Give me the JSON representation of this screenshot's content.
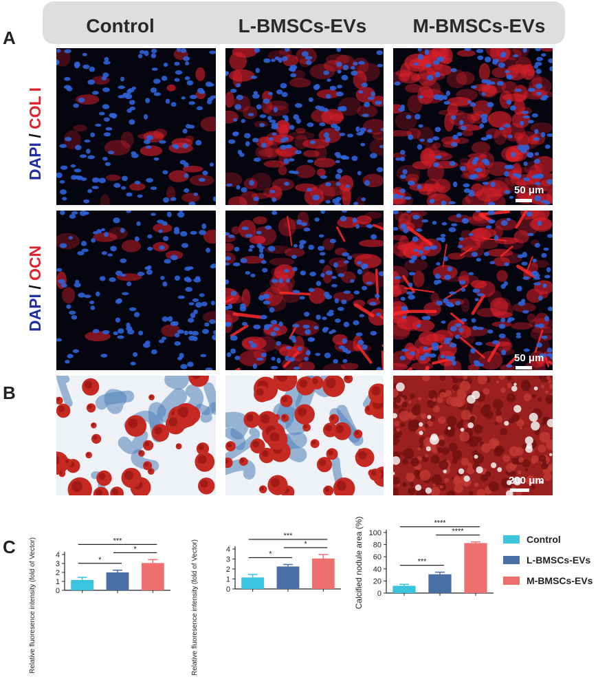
{
  "panel_labels": {
    "a": "A",
    "b": "B",
    "c": "C"
  },
  "columns": [
    "Control",
    "L-BMSCs-EVs",
    "M-BMSCs-EVs"
  ],
  "rows": [
    {
      "stain_a": "DAPI",
      "separator": " / ",
      "stain_b": "COL I"
    },
    {
      "stain_a": "DAPI",
      "separator": " / ",
      "stain_b": "OCN"
    }
  ],
  "scale_bars": {
    "fluorescence": "50 μm",
    "alizarin": "200 μm"
  },
  "colors": {
    "control": "#3bc4dd",
    "l_bmscs": "#4a6fa5",
    "m_bmscs": "#ef6f6f",
    "dapi_blue": "#1f2ea0",
    "stain_red": "#e0202a"
  },
  "legend": [
    {
      "label": "Control",
      "color": "#3bc4dd"
    },
    {
      "label": "L-BMSCs-EVs",
      "color": "#4a6fa5"
    },
    {
      "label": "M-BMSCs-EVs",
      "color": "#ef6f6f"
    }
  ],
  "chart_data": [
    {
      "type": "bar",
      "ylabel": "Relative fluoresence intensity (fold of Vector)",
      "ylim": [
        0,
        4
      ],
      "yticks": [
        0,
        1,
        2,
        3,
        4
      ],
      "categories": [
        "Control",
        "L-BMSCs-EVs",
        "M-BMSCs-EVs"
      ],
      "values": [
        1.15,
        2.0,
        3.05
      ],
      "errors": [
        0.3,
        0.25,
        0.38
      ],
      "significance": [
        {
          "from": 0,
          "to": 1,
          "label": "*"
        },
        {
          "from": 1,
          "to": 2,
          "label": "*"
        },
        {
          "from": 0,
          "to": 2,
          "label": "***"
        }
      ]
    },
    {
      "type": "bar",
      "ylabel": "Relative fluoresence intensity (fold of Vector)",
      "ylim": [
        0,
        4
      ],
      "yticks": [
        0,
        1,
        2,
        3,
        4
      ],
      "categories": [
        "Control",
        "L-BMSCs-EVs",
        "M-BMSCs-EVs"
      ],
      "values": [
        1.15,
        2.25,
        3.05
      ],
      "errors": [
        0.3,
        0.2,
        0.4
      ],
      "significance": [
        {
          "from": 0,
          "to": 1,
          "label": "*"
        },
        {
          "from": 1,
          "to": 2,
          "label": "*"
        },
        {
          "from": 0,
          "to": 2,
          "label": "***"
        }
      ]
    },
    {
      "type": "bar",
      "ylabel": "Calcified nodule area (%)",
      "ylim": [
        0,
        100
      ],
      "yticks": [
        0,
        20,
        40,
        60,
        80,
        100
      ],
      "categories": [
        "Control",
        "L-BMSCs-EVs",
        "M-BMSCs-EVs"
      ],
      "values": [
        12,
        31,
        82.5
      ],
      "errors": [
        2.5,
        3.5,
        2
      ],
      "significance": [
        {
          "from": 0,
          "to": 1,
          "label": "***"
        },
        {
          "from": 1,
          "to": 2,
          "label": "****"
        },
        {
          "from": 0,
          "to": 2,
          "label": "****"
        }
      ]
    }
  ]
}
